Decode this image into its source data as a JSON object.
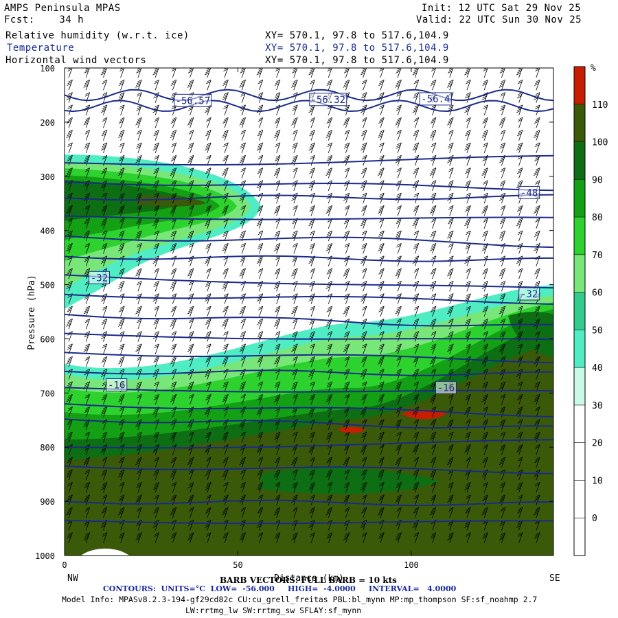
{
  "header": {
    "model": "AMPS Peninsula MPAS",
    "fcst": "Fcst:    34 h",
    "init": "Init: 12 UTC Sat 29 Nov 25",
    "valid": "Valid: 22 UTC Sun 30 Nov 25",
    "fields": [
      {
        "name": "Relative humidity (w.r.t. ice)",
        "xy": "XY= 570.1, 97.8 to 517.6,104.9"
      },
      {
        "name": "Temperature",
        "xy": "XY= 570.1, 97.8 to 517.6,104.9"
      },
      {
        "name": "Horizontal wind vectors",
        "xy": "XY= 570.1, 97.8 to 517.6,104.9"
      }
    ]
  },
  "chart_data": {
    "type": "cross-section",
    "ylabel": "Pressure (hPa)",
    "xlabel": "Distance (km)",
    "x_range": [
      0,
      141
    ],
    "y_range": [
      100,
      1000
    ],
    "x_ticks": [
      0,
      50,
      100
    ],
    "y_ticks": [
      100,
      200,
      300,
      400,
      500,
      600,
      700,
      800,
      900,
      1000
    ],
    "left_end": "NW",
    "right_end": "SE",
    "colorbar": {
      "unit": "%",
      "labels": [
        "110",
        "100",
        "90",
        "80",
        "70",
        "60",
        "50",
        "40",
        "30",
        "20",
        "10",
        "0"
      ],
      "colors": [
        "#c81e00",
        "#3a5a0a",
        "#0e6e14",
        "#14a014",
        "#2ed22e",
        "#78e678",
        "#32cc8c",
        "#50ecc4",
        "#c8fae6",
        "#ffffff",
        "#ffffff",
        "#ffffff",
        "#ffffff"
      ]
    },
    "temperature_contours": {
      "units": "°C",
      "low": -56,
      "high": -4,
      "interval": 4,
      "labels": [
        {
          "text": "-56.57",
          "x": 37,
          "p": 160
        },
        {
          "text": "-56.32",
          "x": 76,
          "p": 158
        },
        {
          "text": "-56.4",
          "x": 107,
          "p": 157
        },
        {
          "text": "-48",
          "x": 134,
          "p": 330
        },
        {
          "text": "-32",
          "x": 10,
          "p": 487
        },
        {
          "text": "-32",
          "x": 134,
          "p": 517
        },
        {
          "text": "-16",
          "x": 15,
          "p": 685
        },
        {
          "text": "-16",
          "x": 110,
          "p": 690
        }
      ]
    }
  },
  "footer": {
    "barb": "BARB VECTORS: FULL BARB = 10 kts",
    "contours": "CONTOURS:  UNITS=°C  LOW=  -56.000     HIGH=  -4.0000     INTERVAL=   4.0000",
    "model_info": "Model Info: MPASv8.2.3-194-gf29cd82c CU:cu_grell_freitas PBL:bl_mynn MP:mp_thompson SF:sf_noahmp 2.7",
    "model_info2": "LW:rrtmg_lw SW:rrtmg_sw SFLAY:sf_mynn"
  }
}
